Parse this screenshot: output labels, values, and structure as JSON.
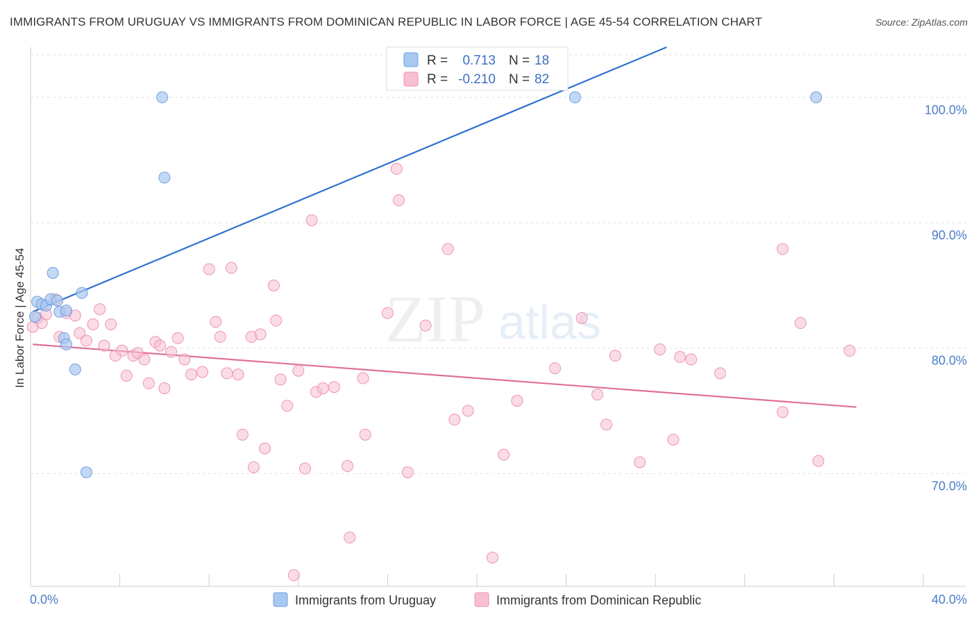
{
  "title": "IMMIGRANTS FROM URUGUAY VS IMMIGRANTS FROM DOMINICAN REPUBLIC IN LABOR FORCE | AGE 45-54 CORRELATION CHART",
  "source": "Source: ZipAtlas.com",
  "watermark": {
    "zip": "ZIP",
    "atlas": "atlas"
  },
  "colors": {
    "uruguay_fill": "#a8c8f0",
    "uruguay_stroke": "#6f9fe0",
    "uruguay_line": "#2f6fd0",
    "dominican_fill": "#f7bfd2",
    "dominican_stroke": "#ec93b4",
    "dominican_line": "#e0709a",
    "tick_label": "#4a7cc7"
  },
  "legend": {
    "rows": [
      {
        "r_label": "R =",
        "r_value": "0.713",
        "n_label": "N =",
        "n_value": "18"
      },
      {
        "r_label": "R =",
        "r_value": "-0.210",
        "n_label": "N =",
        "n_value": "82"
      }
    ]
  },
  "bottom_legend": {
    "uruguay": "Immigrants from Uruguay",
    "dominican": "Immigrants from Dominican Republic"
  },
  "chart_data": {
    "type": "scatter",
    "title": "IMMIGRANTS FROM URUGUAY VS IMMIGRANTS FROM DOMINICAN REPUBLIC IN LABOR FORCE | AGE 45-54 CORRELATION CHART",
    "xlabel": "",
    "ylabel": "In Labor Force | Age 45-54",
    "xlim": [
      0,
      40
    ],
    "ylim": [
      61,
      104
    ],
    "x_tick_labels": [
      "0.0%",
      "40.0%"
    ],
    "y_ticks": [
      70,
      80,
      90,
      100
    ],
    "y_tick_labels": [
      "70.0%",
      "80.0%",
      "90.0%",
      "100.0%"
    ],
    "grid": true,
    "legend_position": "top-center",
    "series": [
      {
        "name": "Immigrants from Uruguay",
        "R": 0.713,
        "N": 18,
        "trend": {
          "x": [
            0.1,
            28.5
          ],
          "y": [
            82.9,
            104.0
          ]
        },
        "points": [
          {
            "x": 0.3,
            "y": 83.7
          },
          {
            "x": 0.5,
            "y": 83.5
          },
          {
            "x": 0.7,
            "y": 83.4
          },
          {
            "x": 0.9,
            "y": 83.9
          },
          {
            "x": 1.0,
            "y": 86.0
          },
          {
            "x": 1.2,
            "y": 83.8
          },
          {
            "x": 1.3,
            "y": 82.9
          },
          {
            "x": 1.6,
            "y": 83.0
          },
          {
            "x": 1.5,
            "y": 80.8
          },
          {
            "x": 1.6,
            "y": 80.3
          },
          {
            "x": 2.0,
            "y": 78.3
          },
          {
            "x": 2.3,
            "y": 84.4
          },
          {
            "x": 2.5,
            "y": 70.1
          },
          {
            "x": 5.9,
            "y": 100.0
          },
          {
            "x": 6.0,
            "y": 93.6
          },
          {
            "x": 24.4,
            "y": 100.0
          },
          {
            "x": 35.2,
            "y": 100.0
          },
          {
            "x": 0.2,
            "y": 82.5
          }
        ]
      },
      {
        "name": "Immigrants from Dominican Republic",
        "R": -0.21,
        "N": 82,
        "trend": {
          "x": [
            0.1,
            37.0
          ],
          "y": [
            80.3,
            75.3
          ]
        },
        "points": [
          {
            "x": 0.1,
            "y": 81.7
          },
          {
            "x": 0.3,
            "y": 82.4
          },
          {
            "x": 0.5,
            "y": 82.0
          },
          {
            "x": 0.7,
            "y": 82.7
          },
          {
            "x": 1.1,
            "y": 83.9
          },
          {
            "x": 1.3,
            "y": 80.9
          },
          {
            "x": 1.6,
            "y": 82.8
          },
          {
            "x": 2.0,
            "y": 82.6
          },
          {
            "x": 2.2,
            "y": 81.2
          },
          {
            "x": 2.5,
            "y": 80.6
          },
          {
            "x": 2.8,
            "y": 81.9
          },
          {
            "x": 3.1,
            "y": 83.1
          },
          {
            "x": 3.3,
            "y": 80.2
          },
          {
            "x": 3.6,
            "y": 81.9
          },
          {
            "x": 3.8,
            "y": 79.4
          },
          {
            "x": 4.1,
            "y": 79.8
          },
          {
            "x": 4.3,
            "y": 77.8
          },
          {
            "x": 4.6,
            "y": 79.4
          },
          {
            "x": 4.8,
            "y": 79.6
          },
          {
            "x": 5.1,
            "y": 79.1
          },
          {
            "x": 5.3,
            "y": 77.2
          },
          {
            "x": 5.6,
            "y": 80.5
          },
          {
            "x": 5.8,
            "y": 80.2
          },
          {
            "x": 6.0,
            "y": 76.8
          },
          {
            "x": 6.3,
            "y": 79.7
          },
          {
            "x": 6.6,
            "y": 80.8
          },
          {
            "x": 6.9,
            "y": 79.1
          },
          {
            "x": 7.2,
            "y": 77.9
          },
          {
            "x": 7.7,
            "y": 78.1
          },
          {
            "x": 8.0,
            "y": 86.3
          },
          {
            "x": 8.3,
            "y": 82.1
          },
          {
            "x": 8.5,
            "y": 80.9
          },
          {
            "x": 8.8,
            "y": 78.0
          },
          {
            "x": 9.0,
            "y": 86.4
          },
          {
            "x": 9.3,
            "y": 77.9
          },
          {
            "x": 9.5,
            "y": 73.1
          },
          {
            "x": 9.9,
            "y": 80.9
          },
          {
            "x": 10.0,
            "y": 70.5
          },
          {
            "x": 10.3,
            "y": 81.1
          },
          {
            "x": 10.5,
            "y": 72.0
          },
          {
            "x": 10.9,
            "y": 85.0
          },
          {
            "x": 11.0,
            "y": 82.2
          },
          {
            "x": 11.2,
            "y": 77.5
          },
          {
            "x": 11.5,
            "y": 75.4
          },
          {
            "x": 11.8,
            "y": 61.9
          },
          {
            "x": 12.0,
            "y": 78.2
          },
          {
            "x": 12.3,
            "y": 70.4
          },
          {
            "x": 12.6,
            "y": 90.2
          },
          {
            "x": 12.8,
            "y": 76.5
          },
          {
            "x": 13.1,
            "y": 76.8
          },
          {
            "x": 13.6,
            "y": 76.9
          },
          {
            "x": 14.2,
            "y": 70.6
          },
          {
            "x": 14.3,
            "y": 64.9
          },
          {
            "x": 14.9,
            "y": 77.6
          },
          {
            "x": 15.0,
            "y": 73.1
          },
          {
            "x": 16.0,
            "y": 82.8
          },
          {
            "x": 16.4,
            "y": 94.3
          },
          {
            "x": 16.5,
            "y": 91.8
          },
          {
            "x": 16.9,
            "y": 70.1
          },
          {
            "x": 17.7,
            "y": 81.8
          },
          {
            "x": 18.7,
            "y": 87.9
          },
          {
            "x": 19.0,
            "y": 74.3
          },
          {
            "x": 19.6,
            "y": 75.0
          },
          {
            "x": 20.7,
            "y": 63.3
          },
          {
            "x": 21.2,
            "y": 71.5
          },
          {
            "x": 21.8,
            "y": 75.8
          },
          {
            "x": 23.5,
            "y": 78.4
          },
          {
            "x": 24.7,
            "y": 82.4
          },
          {
            "x": 25.4,
            "y": 76.3
          },
          {
            "x": 25.8,
            "y": 73.9
          },
          {
            "x": 26.2,
            "y": 79.4
          },
          {
            "x": 27.3,
            "y": 70.9
          },
          {
            "x": 28.2,
            "y": 79.9
          },
          {
            "x": 28.8,
            "y": 72.7
          },
          {
            "x": 29.1,
            "y": 79.3
          },
          {
            "x": 29.6,
            "y": 79.1
          },
          {
            "x": 30.9,
            "y": 78.0
          },
          {
            "x": 33.7,
            "y": 87.9
          },
          {
            "x": 33.7,
            "y": 74.9
          },
          {
            "x": 34.5,
            "y": 82.0
          },
          {
            "x": 35.3,
            "y": 71.0
          },
          {
            "x": 36.7,
            "y": 79.8
          }
        ]
      }
    ]
  }
}
